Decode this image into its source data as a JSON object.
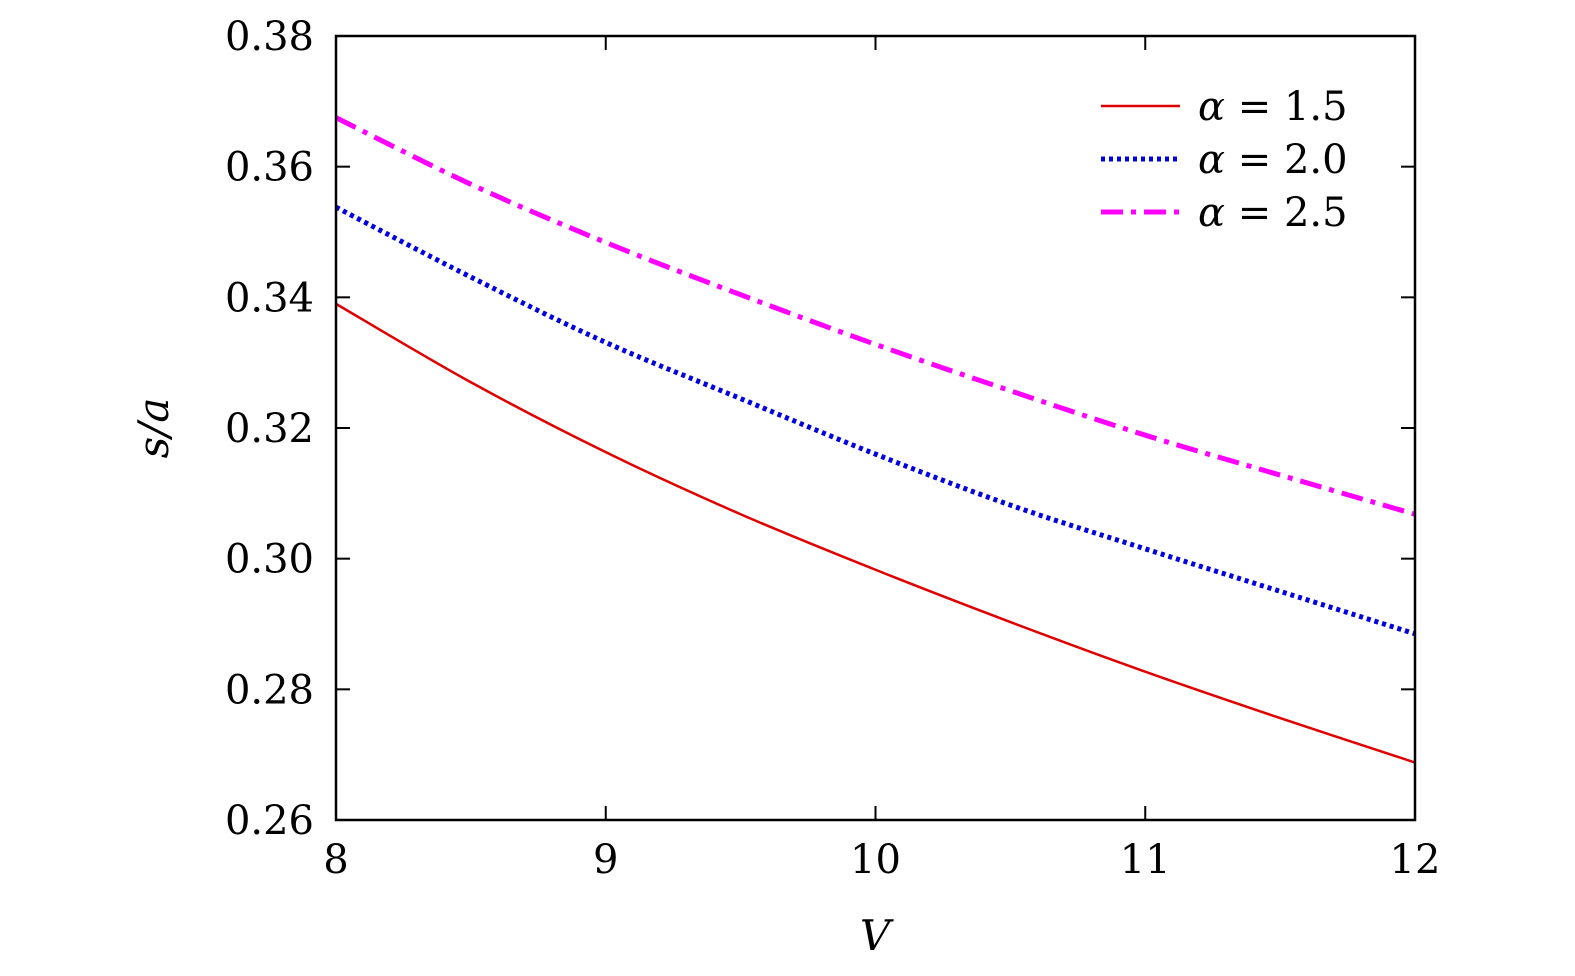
{
  "chart_data": {
    "type": "line",
    "xlabel": "V",
    "ylabel": "s/a",
    "xlim": [
      8,
      12
    ],
    "ylim": [
      0.26,
      0.38
    ],
    "xticks": [
      "8",
      "9",
      "10",
      "11",
      "12"
    ],
    "yticks": [
      "0.26",
      "0.28",
      "0.30",
      "0.32",
      "0.34",
      "0.36",
      "0.38"
    ],
    "grid": false,
    "legend_position": "top-right",
    "x": [
      8,
      8.5,
      9,
      9.5,
      10,
      10.5,
      11,
      11.5,
      12
    ],
    "series": [
      {
        "name": "α = 1.5",
        "greek": "α",
        "rest": " = 1.5",
        "color": "#e00000",
        "style": "solid",
        "values": [
          0.339,
          0.327,
          0.3163,
          0.3068,
          0.2983,
          0.2903,
          0.2827,
          0.2756,
          0.2688
        ]
      },
      {
        "name": "α = 2.0",
        "greek": "α",
        "rest": " = 2.0",
        "color": "#0000e0",
        "style": "dotted",
        "values": [
          0.3538,
          0.3431,
          0.3331,
          0.3245,
          0.316,
          0.3082,
          0.3015,
          0.295,
          0.2885
        ]
      },
      {
        "name": "α = 2.5",
        "greek": "α",
        "rest": " = 2.5",
        "color": "#ff00ff",
        "style": "dashdot",
        "values": [
          0.3675,
          0.3573,
          0.3484,
          0.3404,
          0.3328,
          0.3257,
          0.3189,
          0.3128,
          0.3068
        ]
      }
    ]
  }
}
